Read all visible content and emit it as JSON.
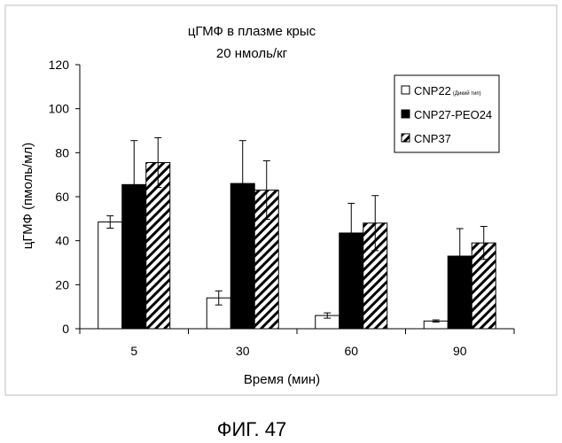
{
  "figure_caption": "ФИГ. 47",
  "chart_data": {
    "type": "bar",
    "title": "цГМФ в плазме крыс",
    "subtitle": "20 нмоль/кг",
    "xlabel": "Время (мин)",
    "ylabel": "цГМФ (пмоль/мл)",
    "ylim": [
      0,
      120
    ],
    "yticks": [
      0,
      20,
      40,
      60,
      80,
      100,
      120
    ],
    "categories": [
      "5",
      "30",
      "60",
      "90"
    ],
    "grid": false,
    "legend_position": "top-right",
    "series": [
      {
        "name": "CNP22",
        "name_note": "(Дикий тип)",
        "fill": "white",
        "values": [
          48.5,
          14,
          6,
          3.5
        ],
        "errors": [
          2.8,
          3.2,
          1.2,
          0.5
        ]
      },
      {
        "name": "CNP27-PEO24",
        "fill": "black",
        "values": [
          65.5,
          66,
          43.5,
          33
        ],
        "errors": [
          20,
          19.5,
          13.5,
          12.5
        ]
      },
      {
        "name": "CNP37",
        "fill": "hatched",
        "values": [
          75.5,
          63,
          48,
          39
        ],
        "errors": [
          11.3,
          13.3,
          12.5,
          7.5
        ]
      }
    ]
  }
}
